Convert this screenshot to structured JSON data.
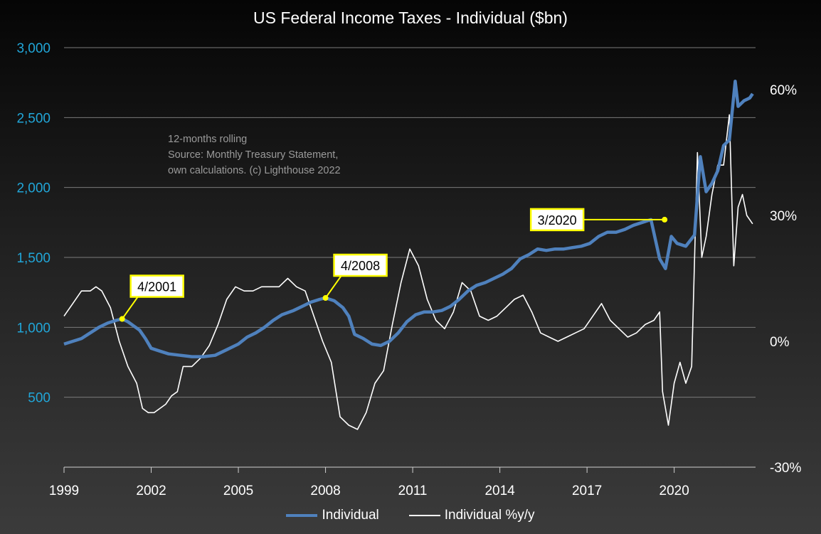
{
  "colors": {
    "individual": "#4f81bd",
    "yoy": "#ffffff",
    "callout_fill": "#ffffff",
    "callout_border": "#ffff00",
    "left_axis_text": "#21a6d8",
    "right_axis_text": "#ffffff",
    "gridline": "#7a7a7a"
  },
  "chart_data": {
    "type": "line",
    "title": "US Federal Income Taxes - Individual ($bn)",
    "annotation_text": [
      "12-months rolling",
      "Source: Monthly Treasury Statement,",
      "own calculations. (c) Lighthouse 2022"
    ],
    "x_range": [
      1999.0,
      2022.8
    ],
    "x_ticks": [
      1999,
      2002,
      2005,
      2008,
      2011,
      2014,
      2017,
      2020
    ],
    "y_left": {
      "range": [
        0,
        3000
      ],
      "ticks": [
        500,
        1000,
        1500,
        2000,
        2500,
        3000
      ],
      "tick_labels": [
        "500",
        "1,000",
        "1,500",
        "2,000",
        "2,500",
        "3,000"
      ]
    },
    "y_right": {
      "range": [
        -30,
        70
      ],
      "ticks": [
        -30,
        0,
        30,
        60
      ],
      "tick_labels": [
        "-30%",
        "0%",
        "30%",
        "60%"
      ]
    },
    "grid": true,
    "legend_position": "bottom",
    "series": [
      {
        "name": "Individual",
        "axis": "left",
        "x": [
          1999.0,
          1999.3,
          1999.6,
          1999.9,
          2000.2,
          2000.5,
          2000.8,
          2001.0,
          2001.2,
          2001.4,
          2001.6,
          2001.8,
          2002.0,
          2002.3,
          2002.6,
          2003.0,
          2003.4,
          2003.8,
          2004.2,
          2004.6,
          2005.0,
          2005.3,
          2005.6,
          2005.9,
          2006.2,
          2006.5,
          2006.9,
          2007.2,
          2007.5,
          2007.8,
          2008.0,
          2008.3,
          2008.6,
          2008.8,
          2009.0,
          2009.3,
          2009.6,
          2009.9,
          2010.2,
          2010.5,
          2010.8,
          2011.1,
          2011.4,
          2011.7,
          2012.0,
          2012.3,
          2012.6,
          2012.9,
          2013.2,
          2013.5,
          2013.8,
          2014.1,
          2014.4,
          2014.7,
          2015.0,
          2015.3,
          2015.6,
          2015.9,
          2016.2,
          2016.5,
          2016.8,
          2017.1,
          2017.4,
          2017.7,
          2018.0,
          2018.3,
          2018.6,
          2018.9,
          2019.2,
          2019.5,
          2019.7,
          2019.9,
          2020.1,
          2020.4,
          2020.7,
          2020.9,
          2021.1,
          2021.3,
          2021.5,
          2021.7,
          2021.9,
          2022.1,
          2022.2,
          2022.4,
          2022.6,
          2022.7
        ],
        "values": [
          880,
          900,
          920,
          960,
          1000,
          1030,
          1050,
          1060,
          1040,
          1010,
          980,
          920,
          850,
          830,
          810,
          800,
          790,
          790,
          800,
          840,
          880,
          930,
          960,
          1000,
          1050,
          1090,
          1120,
          1150,
          1180,
          1200,
          1210,
          1190,
          1140,
          1080,
          950,
          920,
          880,
          870,
          900,
          960,
          1040,
          1090,
          1110,
          1110,
          1120,
          1150,
          1200,
          1260,
          1300,
          1320,
          1350,
          1380,
          1420,
          1490,
          1520,
          1560,
          1550,
          1560,
          1560,
          1570,
          1580,
          1600,
          1650,
          1680,
          1680,
          1700,
          1730,
          1750,
          1770,
          1490,
          1420,
          1650,
          1600,
          1580,
          1660,
          2220,
          1970,
          2030,
          2120,
          2300,
          2340,
          2760,
          2580,
          2620,
          2640,
          2670
        ]
      },
      {
        "name": "Individual %y/y",
        "axis": "right",
        "x": [
          1999.0,
          1999.3,
          1999.6,
          1999.9,
          2000.1,
          2000.3,
          2000.6,
          2000.9,
          2001.2,
          2001.5,
          2001.7,
          2001.9,
          2002.1,
          2002.3,
          2002.5,
          2002.7,
          2002.9,
          2003.1,
          2003.4,
          2003.7,
          2004.0,
          2004.3,
          2004.6,
          2004.9,
          2005.2,
          2005.5,
          2005.8,
          2006.1,
          2006.4,
          2006.7,
          2007.0,
          2007.3,
          2007.6,
          2007.9,
          2008.2,
          2008.5,
          2008.8,
          2009.1,
          2009.4,
          2009.7,
          2010.0,
          2010.3,
          2010.6,
          2010.9,
          2011.2,
          2011.5,
          2011.8,
          2012.1,
          2012.4,
          2012.7,
          2013.0,
          2013.3,
          2013.6,
          2013.9,
          2014.2,
          2014.5,
          2014.8,
          2015.1,
          2015.4,
          2015.7,
          2016.0,
          2016.3,
          2016.6,
          2016.9,
          2017.2,
          2017.5,
          2017.8,
          2018.1,
          2018.4,
          2018.7,
          2019.0,
          2019.3,
          2019.5,
          2019.6,
          2019.8,
          2020.0,
          2020.2,
          2020.4,
          2020.6,
          2020.8,
          2020.95,
          2021.1,
          2021.3,
          2021.5,
          2021.7,
          2021.9,
          2022.05,
          2022.2,
          2022.35,
          2022.5,
          2022.7
        ],
        "values": [
          6,
          9,
          12,
          12,
          13,
          12,
          8,
          0,
          -6,
          -10,
          -16,
          -17,
          -17,
          -16,
          -15,
          -13,
          -12,
          -6,
          -6,
          -4,
          -1,
          4,
          10,
          13,
          12,
          12,
          13,
          13,
          13,
          15,
          13,
          12,
          6,
          0,
          -5,
          -18,
          -20,
          -21,
          -17,
          -10,
          -7,
          4,
          14,
          22,
          18,
          10,
          5,
          3,
          7,
          14,
          12,
          6,
          5,
          6,
          8,
          10,
          11,
          7,
          2,
          1,
          0,
          1,
          2,
          3,
          6,
          9,
          5,
          3,
          1,
          2,
          4,
          5,
          7,
          -12,
          -20,
          -10,
          -5,
          -10,
          -6,
          45,
          20,
          25,
          35,
          42,
          42,
          54,
          18,
          32,
          35,
          30,
          28
        ]
      }
    ],
    "callouts": [
      {
        "label": "4/2001",
        "x": 2001.0,
        "y": 1060
      },
      {
        "label": "4/2008",
        "x": 2008.0,
        "y": 1210
      },
      {
        "label": "3/2020",
        "x": 2019.67,
        "y": 1770
      }
    ]
  },
  "legend": {
    "items": [
      {
        "label": "Individual"
      },
      {
        "label": "Individual %y/y"
      }
    ]
  }
}
